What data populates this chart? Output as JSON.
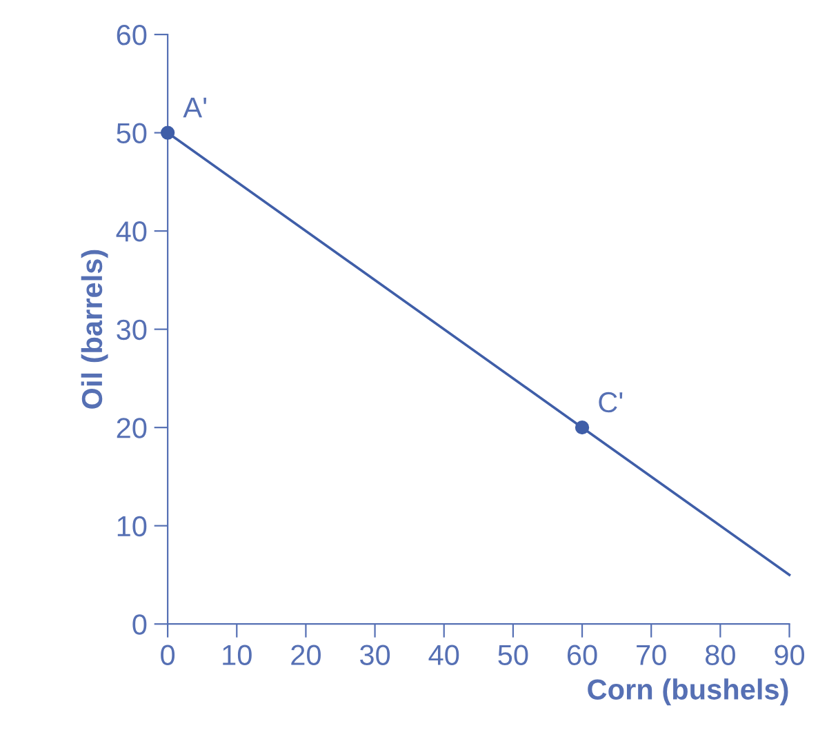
{
  "chart_data": {
    "type": "line",
    "xlabel": "Corn (bushels)",
    "ylabel": "Oil (barrels)",
    "xlim": [
      0,
      90
    ],
    "ylim": [
      0,
      60
    ],
    "xticks": [
      0,
      10,
      20,
      30,
      40,
      50,
      60,
      70,
      80,
      90
    ],
    "yticks": [
      0,
      10,
      20,
      30,
      40,
      50,
      60
    ],
    "grid": false,
    "legend": false,
    "series": [
      {
        "color": "#3f5ea8",
        "x": [
          0,
          60,
          90
        ],
        "values": [
          50,
          20,
          5
        ],
        "marker": "none",
        "line_style": "solid"
      },
      {
        "type": "scatter",
        "color": "#3f5ea8",
        "x": [
          0,
          60
        ],
        "values": [
          50,
          20
        ],
        "marker": "circle"
      }
    ],
    "annotations": [
      {
        "text": "A'",
        "x": 0,
        "y": 50
      },
      {
        "text": "C'",
        "x": 60,
        "y": 20
      }
    ]
  }
}
